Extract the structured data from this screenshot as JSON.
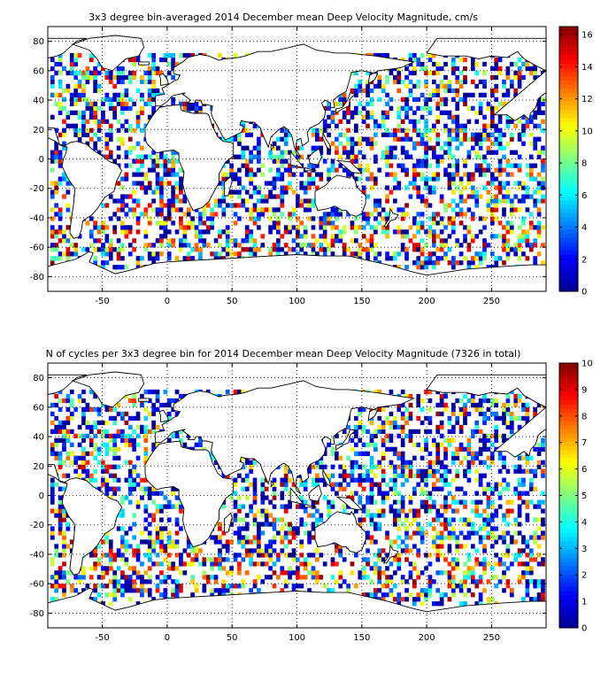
{
  "figure": {
    "panels": [
      {
        "id": "top",
        "title": "3x3 degree bin-averaged 2014 December mean Deep Velocity Magnitude, cm/s",
        "colorbar": {
          "min": 0,
          "max": 16.5,
          "ticks": [
            "0",
            "2",
            "4",
            "6",
            "8",
            "10",
            "12",
            "14",
            "16"
          ]
        },
        "tick_values": [
          0,
          2,
          4,
          6,
          8,
          10,
          12,
          14,
          16
        ]
      },
      {
        "id": "bottom",
        "title": "N of cycles per 3x3 degree bin for 2014 December mean Deep Velocity Magnitude (7326 in total)",
        "colorbar": {
          "min": 0,
          "max": 10,
          "ticks": [
            "0",
            "1",
            "2",
            "3",
            "4",
            "5",
            "6",
            "7",
            "8",
            "9",
            "10"
          ]
        },
        "tick_values": [
          0,
          1,
          2,
          3,
          4,
          5,
          6,
          7,
          8,
          9,
          10
        ]
      }
    ],
    "x_ticks": [
      "-50",
      "0",
      "50",
      "100",
      "150",
      "200",
      "250"
    ],
    "x_tick_values": [
      -50,
      0,
      50,
      100,
      150,
      200,
      250
    ],
    "y_ticks": [
      "80",
      "60",
      "40",
      "20",
      "0",
      "-20",
      "-40",
      "-60",
      "-80"
    ],
    "y_tick_values": [
      80,
      60,
      40,
      20,
      0,
      -20,
      -40,
      -60,
      -80
    ],
    "x_range": [
      -92,
      292
    ],
    "y_range": [
      -90,
      90
    ],
    "colormap": [
      "#00008f",
      "#0000ff",
      "#0080ff",
      "#00ffff",
      "#80ff80",
      "#ffff00",
      "#ff8000",
      "#ff0000",
      "#800000"
    ]
  }
}
